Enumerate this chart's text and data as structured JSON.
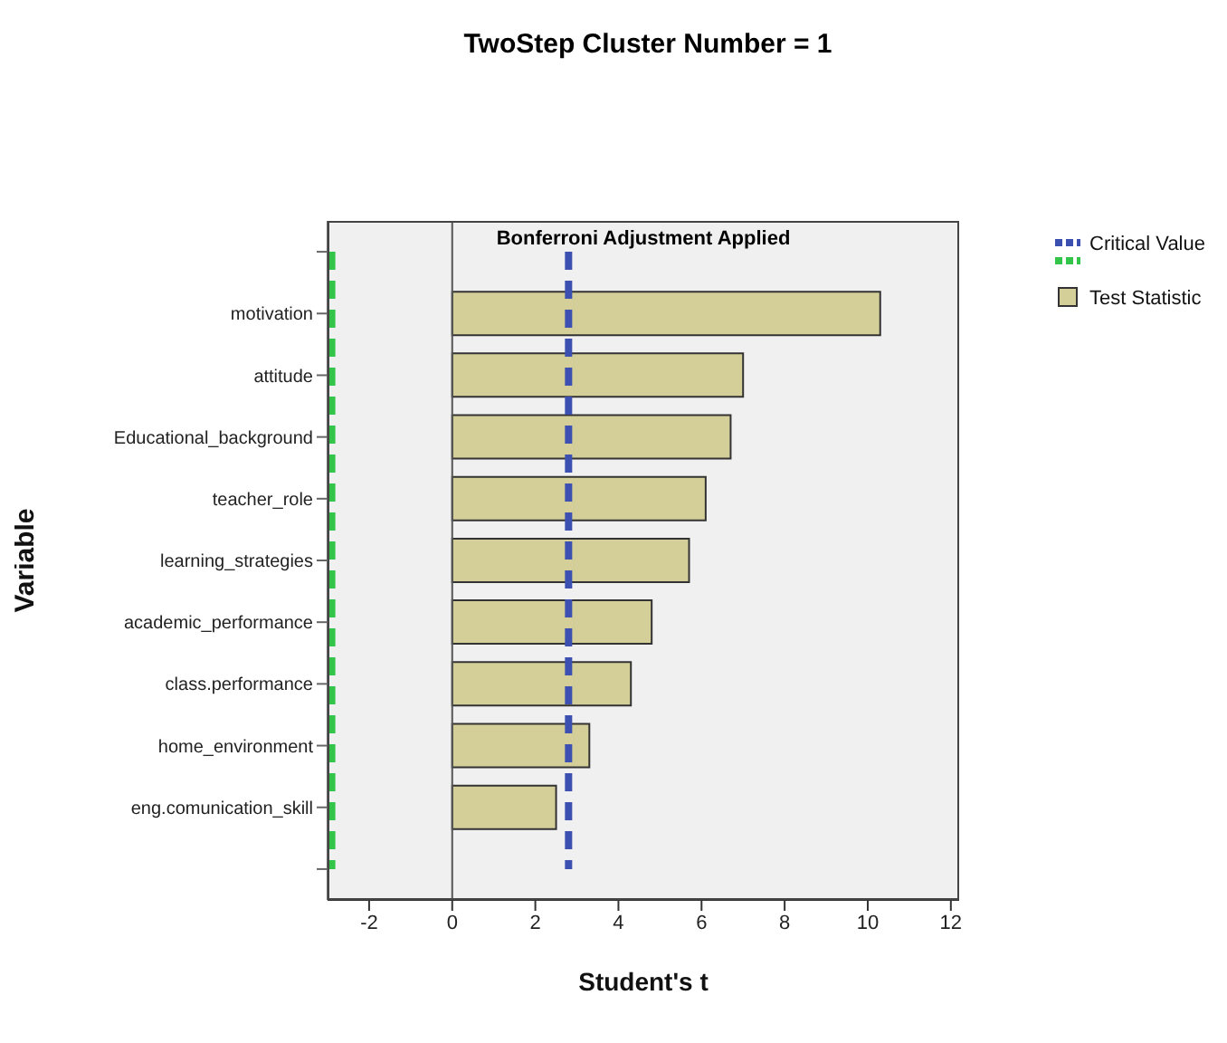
{
  "chart_data": {
    "type": "bar",
    "orientation": "horizontal",
    "title": "TwoStep Cluster Number = 1",
    "subtitle": "Bonferroni Adjustment Applied",
    "xlabel": "Student's t",
    "ylabel": "Variable",
    "categories": [
      null,
      "motivation",
      "attitude",
      "Educational_background",
      "teacher_role",
      "learning_strategies",
      "academic_performance",
      "class.performance",
      "home_environment",
      "eng.comunication_skill",
      null
    ],
    "series": [
      {
        "name": "Critical Value",
        "type": "line",
        "line_style": "dashed",
        "color": "#3b50b0",
        "values": [
          2.8,
          2.8,
          2.8,
          2.8,
          2.8,
          2.8,
          2.8,
          2.8,
          2.8,
          2.8,
          2.8
        ]
      },
      {
        "type": "line",
        "line_style": "dashed",
        "color": "#33c44a",
        "values": [
          -2.9,
          -2.9,
          -2.9,
          -2.9,
          -2.9,
          -2.9,
          -2.9,
          -2.9,
          -2.9,
          -2.9,
          -2.9
        ]
      },
      {
        "name": "Test Statistic",
        "color": "#d4cf98",
        "values": [
          null,
          10.3,
          7.0,
          6.7,
          6.1,
          5.7,
          4.8,
          4.3,
          3.3,
          2.5,
          null
        ]
      }
    ],
    "xlim": [
      -3,
      12.2
    ],
    "xticks": [
      -2,
      0,
      2,
      4,
      6,
      8,
      10,
      12
    ],
    "ref_lines": [
      {
        "axis": "x",
        "value": 0,
        "color": "#555555"
      }
    ],
    "grid": false,
    "legend": "right"
  }
}
